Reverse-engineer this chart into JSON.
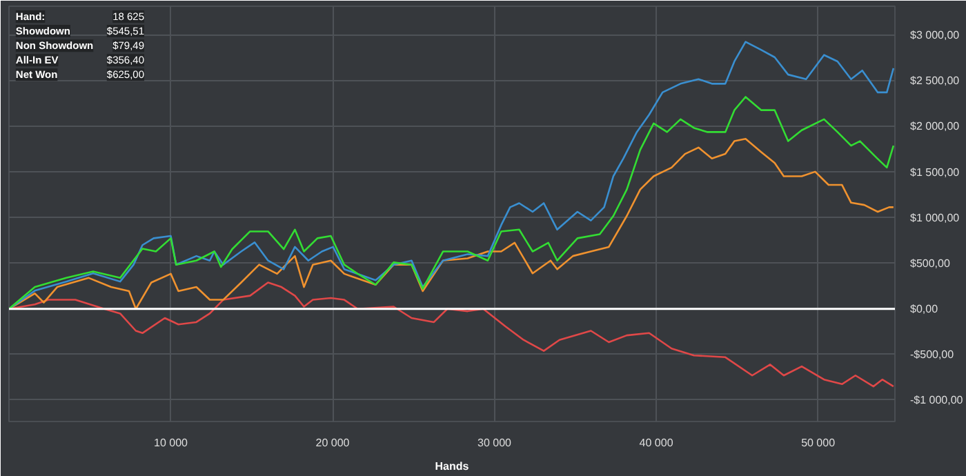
{
  "chart_data": {
    "type": "line",
    "xlabel": "Hands",
    "grid": true,
    "line_style": "solid",
    "xlim": [
      0,
      54750
    ],
    "ylim": [
      -1235,
      3320
    ],
    "xticks": [
      {
        "value": 10000,
        "label": "10 000"
      },
      {
        "value": 20000,
        "label": "20 000"
      },
      {
        "value": 30000,
        "label": "30 000"
      },
      {
        "value": 40000,
        "label": "40 000"
      },
      {
        "value": 50000,
        "label": "50 000"
      }
    ],
    "yticks": [
      {
        "value": -1000,
        "label": "-$1 000,00"
      },
      {
        "value": -500,
        "label": "-$500,00"
      },
      {
        "value": 0,
        "label": "$0,00"
      },
      {
        "value": 500,
        "label": "$500,00"
      },
      {
        "value": 1000,
        "label": "$1 000,00"
      },
      {
        "value": 1500,
        "label": "$1 500,00"
      },
      {
        "value": 2000,
        "label": "$2 000,00"
      },
      {
        "value": 2500,
        "label": "$2 500,00"
      },
      {
        "value": 3000,
        "label": "$3 000,00"
      }
    ],
    "ref_lines": [
      {
        "axis": "y",
        "value": 0,
        "color": "#ffffff"
      }
    ],
    "annotations": [
      "Hand:",
      "18 625",
      "Showdown",
      "$545,51",
      "Non Showdown",
      "$79,49",
      "All-In EV",
      "$356,40",
      "Net Won",
      "$625,00"
    ],
    "series": [
      {
        "color": "#e04848",
        "x": [
          0,
          1600,
          2430,
          4100,
          5890,
          6870,
          7840,
          8250,
          9630,
          10470,
          11580,
          12410,
          13240,
          14900,
          16010,
          16840,
          17670,
          18230,
          18780,
          19890,
          20720,
          21550,
          23770,
          24880,
          26260,
          27090,
          28340,
          29310,
          30700,
          31800,
          33050,
          34020,
          35960,
          37070,
          38180,
          39560,
          40950,
          42330,
          44270,
          45930,
          47040,
          47880,
          48990,
          50370,
          51480,
          52310,
          53420,
          53970,
          54660
        ],
        "values": [
          0,
          50,
          100,
          100,
          0,
          -50,
          -240,
          -265,
          -100,
          -170,
          -145,
          -50,
          100,
          145,
          290,
          240,
          145,
          25,
          100,
          120,
          100,
          0,
          25,
          -100,
          -145,
          0,
          -25,
          0,
          -195,
          -340,
          -460,
          -340,
          -240,
          -365,
          -290,
          -265,
          -435,
          -510,
          -530,
          -730,
          -610,
          -730,
          -630,
          -775,
          -825,
          -730,
          -850,
          -775,
          -850
        ]
      },
      {
        "color": "#f0922f",
        "x": [
          0,
          1600,
          2150,
          2980,
          4930,
          6310,
          7420,
          7840,
          8800,
          10000,
          10470,
          11580,
          12410,
          13240,
          14350,
          15460,
          16570,
          17120,
          17670,
          18230,
          18780,
          19890,
          20720,
          22660,
          23770,
          24880,
          25570,
          26820,
          28340,
          29590,
          30420,
          31250,
          32360,
          33470,
          33880,
          34850,
          35960,
          37070,
          38180,
          39010,
          39840,
          40950,
          41780,
          42610,
          43440,
          44270,
          44830,
          45520,
          46490,
          47320,
          47880,
          48990,
          49820,
          50650,
          51480,
          52040,
          52860,
          53690,
          54390,
          54660
        ],
        "values": [
          0,
          170,
          70,
          240,
          340,
          240,
          195,
          0,
          290,
          385,
          195,
          240,
          100,
          100,
          290,
          485,
          385,
          485,
          580,
          240,
          485,
          530,
          385,
          265,
          485,
          485,
          195,
          530,
          555,
          630,
          630,
          725,
          390,
          530,
          435,
          580,
          630,
          680,
          1020,
          1310,
          1455,
          1550,
          1700,
          1770,
          1650,
          1700,
          1840,
          1865,
          1720,
          1600,
          1455,
          1455,
          1505,
          1360,
          1360,
          1165,
          1140,
          1065,
          1115,
          1115
        ]
      },
      {
        "color": "#3a8fd0",
        "x": [
          0,
          1600,
          3540,
          5200,
          6870,
          7700,
          8250,
          8940,
          10000,
          10330,
          11580,
          12410,
          12690,
          13240,
          14350,
          15180,
          16010,
          16980,
          17670,
          18500,
          19340,
          20030,
          20720,
          22660,
          23770,
          24880,
          25570,
          26820,
          28340,
          29590,
          30420,
          30970,
          31530,
          32360,
          33050,
          33880,
          35130,
          35960,
          36780,
          37350,
          37970,
          38800,
          39560,
          40390,
          41500,
          42610,
          43440,
          44270,
          44830,
          45520,
          46490,
          47320,
          48150,
          49260,
          50370,
          51200,
          52040,
          52730,
          53690,
          54250,
          54660
        ],
        "values": [
          0,
          200,
          300,
          390,
          300,
          485,
          700,
          775,
          800,
          485,
          580,
          530,
          630,
          485,
          630,
          730,
          530,
          435,
          680,
          530,
          630,
          680,
          435,
          315,
          485,
          530,
          240,
          530,
          600,
          580,
          920,
          1115,
          1160,
          1065,
          1160,
          870,
          1065,
          970,
          1115,
          1455,
          1650,
          1940,
          2130,
          2375,
          2470,
          2520,
          2470,
          2470,
          2715,
          2930,
          2840,
          2760,
          2570,
          2520,
          2785,
          2715,
          2520,
          2615,
          2375,
          2375,
          2640
        ]
      },
      {
        "color": "#33dd33",
        "x": [
          0,
          1600,
          3540,
          5200,
          6870,
          8250,
          9080,
          10000,
          10330,
          11580,
          12690,
          13100,
          13790,
          14900,
          16010,
          16980,
          17670,
          18230,
          19060,
          19890,
          20720,
          21550,
          22660,
          23770,
          24880,
          25570,
          26820,
          28340,
          29590,
          30420,
          31530,
          32360,
          33330,
          33880,
          35130,
          36510,
          37350,
          38180,
          39010,
          39840,
          40670,
          41500,
          42330,
          43170,
          44270,
          44830,
          45520,
          46490,
          47320,
          48150,
          48990,
          50370,
          51200,
          52040,
          52590,
          53690,
          54250,
          54660
        ],
        "values": [
          0,
          240,
          340,
          410,
          340,
          660,
          630,
          775,
          485,
          530,
          630,
          460,
          655,
          850,
          850,
          655,
          870,
          630,
          775,
          800,
          485,
          385,
          265,
          510,
          485,
          220,
          630,
          630,
          530,
          850,
          870,
          630,
          725,
          530,
          775,
          820,
          1020,
          1310,
          1745,
          2035,
          1940,
          2080,
          1985,
          1940,
          1940,
          2180,
          2325,
          2180,
          2180,
          1840,
          1960,
          2080,
          1940,
          1790,
          1840,
          1645,
          1550,
          1790
        ]
      }
    ]
  }
}
